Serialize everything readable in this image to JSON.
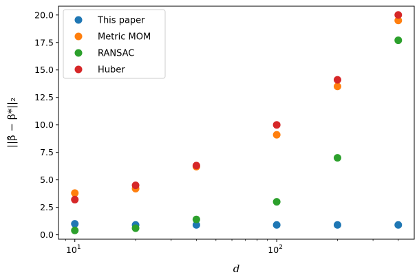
{
  "chart_data": {
    "type": "scatter",
    "xscale": "log",
    "xlim": [
      8.3,
      480
    ],
    "ylim": [
      -0.4,
      20.8
    ],
    "xlabel": "d",
    "ylabel": "||β̂ − β*||₂",
    "x_ticks": [
      {
        "value": 10,
        "base": "10",
        "exp": "1"
      },
      {
        "value": 100,
        "base": "10",
        "exp": "2"
      }
    ],
    "y_ticks": [
      {
        "value": 0,
        "label": "0.0"
      },
      {
        "value": 2.5,
        "label": "2.5"
      },
      {
        "value": 5,
        "label": "5.0"
      },
      {
        "value": 7.5,
        "label": "7.5"
      },
      {
        "value": 10,
        "label": "10.0"
      },
      {
        "value": 12.5,
        "label": "12.5"
      },
      {
        "value": 15,
        "label": "15.0"
      },
      {
        "value": 17.5,
        "label": "17.5"
      },
      {
        "value": 20,
        "label": "20.0"
      }
    ],
    "grid": false,
    "legend_position": "top-left",
    "x": [
      10,
      20,
      40,
      100,
      200,
      400
    ],
    "series": [
      {
        "name": "This paper",
        "color": "#1f77b4",
        "values": [
          1.0,
          0.9,
          0.9,
          0.9,
          0.9,
          0.9
        ]
      },
      {
        "name": "Metric MOM",
        "color": "#ff7f0e",
        "values": [
          3.8,
          4.2,
          6.2,
          9.1,
          13.5,
          19.5
        ]
      },
      {
        "name": "RANSAC",
        "color": "#2ca02c",
        "values": [
          0.4,
          0.6,
          1.4,
          3.0,
          7.0,
          17.7
        ]
      },
      {
        "name": "Huber",
        "color": "#d62728",
        "values": [
          3.2,
          4.5,
          6.3,
          10.0,
          14.1,
          20.0
        ]
      }
    ]
  }
}
